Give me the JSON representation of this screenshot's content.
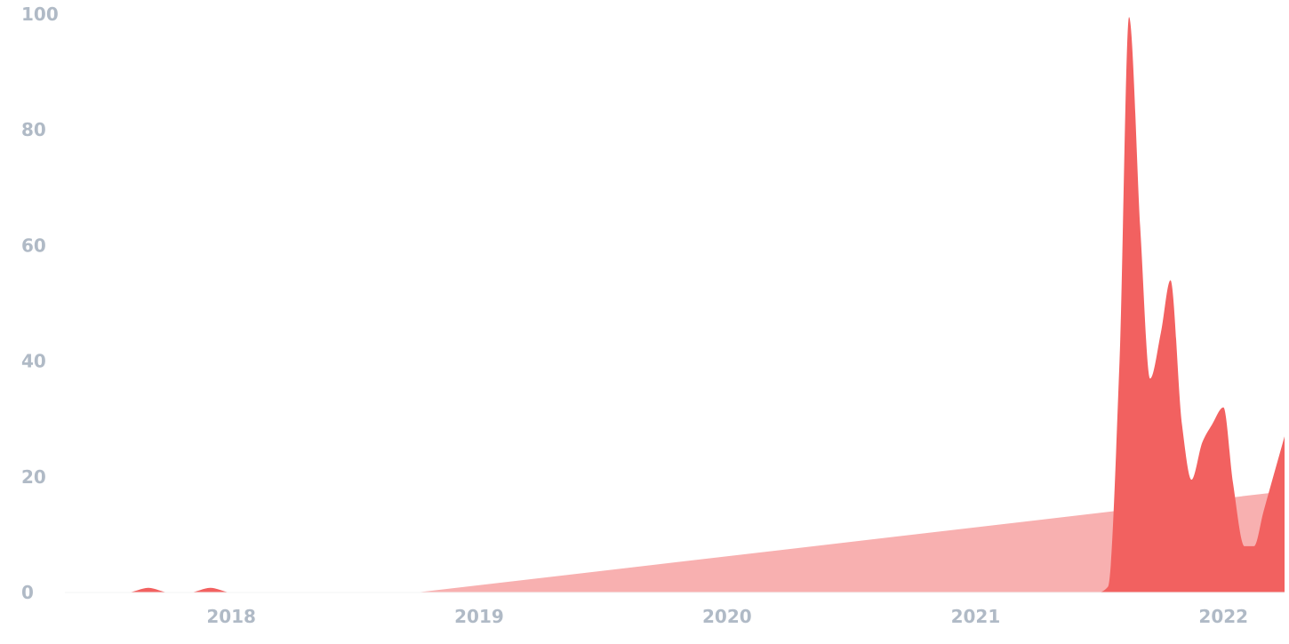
{
  "chart_data": {
    "type": "area",
    "title": "",
    "xlabel": "",
    "ylabel": "",
    "ylim": [
      0,
      100
    ],
    "xlim": [
      "2017-05-01",
      "2022-04-01"
    ],
    "grid": false,
    "legend": "none",
    "y_ticks": [
      {
        "value": 0,
        "label": "0"
      },
      {
        "value": 20,
        "label": "20"
      },
      {
        "value": 40,
        "label": "40"
      },
      {
        "value": 60,
        "label": "60"
      },
      {
        "value": 80,
        "label": "80"
      },
      {
        "value": 100,
        "label": "100"
      }
    ],
    "x_ticks": [
      {
        "value": "2018-01-01",
        "label": "2018"
      },
      {
        "value": "2019-01-01",
        "label": "2019"
      },
      {
        "value": "2020-01-01",
        "label": "2020"
      },
      {
        "value": "2021-01-01",
        "label": "2021"
      },
      {
        "value": "2022-01-01",
        "label": "2022"
      }
    ],
    "series": [
      {
        "color": "#f8b0b0",
        "smooth": false,
        "points": [
          {
            "x": "2017-05-01",
            "y": 0
          },
          {
            "x": "2018-10-01",
            "y": 0
          },
          {
            "x": "2022-04-01",
            "y": 17.5
          }
        ]
      },
      {
        "color": "#f26160",
        "smooth": true,
        "points": [
          {
            "x": "2017-05-01",
            "y": 0
          },
          {
            "x": "2017-08-01",
            "y": 0
          },
          {
            "x": "2017-09-01",
            "y": 0.8
          },
          {
            "x": "2017-10-01",
            "y": 0
          },
          {
            "x": "2017-11-01",
            "y": 0
          },
          {
            "x": "2017-12-01",
            "y": 0.8
          },
          {
            "x": "2018-01-01",
            "y": 0
          },
          {
            "x": "2021-07-01",
            "y": 0
          },
          {
            "x": "2021-07-15",
            "y": 1
          },
          {
            "x": "2021-08-01",
            "y": 40
          },
          {
            "x": "2021-08-15",
            "y": 99.5
          },
          {
            "x": "2021-09-01",
            "y": 62
          },
          {
            "x": "2021-09-15",
            "y": 37
          },
          {
            "x": "2021-10-01",
            "y": 45
          },
          {
            "x": "2021-10-15",
            "y": 54
          },
          {
            "x": "2021-11-01",
            "y": 29
          },
          {
            "x": "2021-11-15",
            "y": 19.5
          },
          {
            "x": "2021-12-01",
            "y": 26
          },
          {
            "x": "2021-12-15",
            "y": 29
          },
          {
            "x": "2022-01-01",
            "y": 32
          },
          {
            "x": "2022-01-15",
            "y": 19
          },
          {
            "x": "2022-02-01",
            "y": 8
          },
          {
            "x": "2022-02-15",
            "y": 8
          },
          {
            "x": "2022-03-01",
            "y": 14
          },
          {
            "x": "2022-04-01",
            "y": 27
          }
        ]
      }
    ],
    "colors": {
      "tick_label": "#b0bac6",
      "baseline": "#f3f4f6"
    }
  }
}
